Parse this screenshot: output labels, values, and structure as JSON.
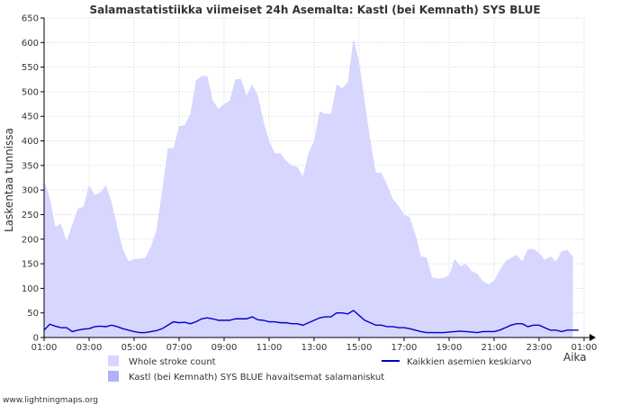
{
  "chart_data": {
    "type": "area",
    "title": "Salamastatistiikka viimeiset 24h Asemalta: Kastl (bei Kemnath) SYS BLUE",
    "xlabel": "Aika",
    "ylabel": "Laskentaa tunnissa",
    "ylim": [
      0,
      650
    ],
    "yticks": [
      0,
      50,
      100,
      150,
      200,
      250,
      300,
      350,
      400,
      450,
      500,
      550,
      600,
      650
    ],
    "xlim_hours": [
      0,
      24
    ],
    "xticks": [
      {
        "h": 0,
        "label": "01:00"
      },
      {
        "h": 2,
        "label": "03:00"
      },
      {
        "h": 4,
        "label": "05:00"
      },
      {
        "h": 6,
        "label": "07:00"
      },
      {
        "h": 8,
        "label": "09:00"
      },
      {
        "h": 10,
        "label": "11:00"
      },
      {
        "h": 12,
        "label": "13:00"
      },
      {
        "h": 14,
        "label": "15:00"
      },
      {
        "h": 16,
        "label": "17:00"
      },
      {
        "h": 18,
        "label": "19:00"
      },
      {
        "h": 20,
        "label": "21:00"
      },
      {
        "h": 22,
        "label": "23:00"
      },
      {
        "h": 24,
        "label": "01:00"
      }
    ],
    "grid": true,
    "x_hours": [
      0,
      0.25,
      0.5,
      0.75,
      1,
      1.25,
      1.5,
      1.75,
      2,
      2.25,
      2.5,
      2.75,
      3,
      3.25,
      3.5,
      3.75,
      4,
      4.25,
      4.5,
      4.75,
      5,
      5.25,
      5.5,
      5.75,
      6,
      6.25,
      6.5,
      6.75,
      7,
      7.25,
      7.5,
      7.75,
      8,
      8.25,
      8.5,
      8.75,
      9,
      9.25,
      9.5,
      9.75,
      10,
      10.25,
      10.5,
      10.75,
      11,
      11.25,
      11.5,
      11.75,
      12,
      12.25,
      12.5,
      12.75,
      13,
      13.25,
      13.5,
      13.75,
      14,
      14.25,
      14.5,
      14.75,
      15,
      15.25,
      15.5,
      15.75,
      16,
      16.25,
      16.5,
      16.75,
      17,
      17.25,
      17.5,
      17.75,
      18,
      18.25,
      18.5,
      18.75,
      19,
      19.25,
      19.5,
      19.75,
      20,
      20.25,
      20.5,
      20.75,
      21,
      21.25,
      21.5,
      21.75,
      22,
      22.25,
      22.5,
      22.75,
      23,
      23.25,
      23.5,
      23.75
    ],
    "series": [
      {
        "name": "Whole stroke count",
        "style": "area",
        "color": "#d6d6ff",
        "values": [
          320,
          285,
          225,
          232,
          195,
          230,
          262,
          266,
          310,
          290,
          295,
          310,
          275,
          225,
          180,
          155,
          160,
          160,
          162,
          185,
          220,
          300,
          385,
          385,
          430,
          432,
          455,
          523,
          532,
          532,
          482,
          465,
          475,
          482,
          525,
          526,
          492,
          515,
          492,
          440,
          400,
          375,
          375,
          360,
          350,
          347,
          328,
          375,
          400,
          460,
          455,
          455,
          515,
          507,
          520,
          608,
          560,
          480,
          400,
          335,
          335,
          310,
          282,
          268,
          250,
          245,
          210,
          165,
          163,
          122,
          120,
          121,
          126,
          160,
          145,
          150,
          135,
          130,
          115,
          108,
          115,
          137,
          155,
          162,
          168,
          155,
          180,
          180,
          172,
          158,
          165,
          155,
          175,
          178,
          165
        ]
      },
      {
        "name": "Kastl (bei Kemnath) SYS BLUE havaitsemat salamaniskut",
        "style": "area",
        "color": "#b0b0ff",
        "values": [
          0,
          0,
          0,
          0,
          0,
          0,
          0,
          0,
          0,
          0,
          0,
          0,
          0,
          0,
          0,
          0,
          0,
          0,
          0,
          0,
          0,
          0,
          0,
          0,
          0,
          0,
          0,
          0,
          0,
          0,
          0,
          0,
          0,
          0,
          0,
          0,
          0,
          0,
          0,
          0,
          0,
          0,
          0,
          0,
          0,
          0,
          0,
          0,
          0,
          0,
          0,
          0,
          0,
          0,
          0,
          0,
          0,
          0,
          0,
          0,
          0,
          0,
          0,
          0,
          0,
          0,
          0,
          0,
          0,
          0,
          0,
          0,
          0,
          0,
          0,
          0,
          0,
          0,
          0,
          0,
          0,
          0,
          0,
          0,
          0,
          0,
          0,
          0,
          0,
          0,
          0,
          0,
          0,
          0,
          0,
          0
        ]
      },
      {
        "name": "Kaikkien asemien keskiarvo",
        "style": "line",
        "color": "#0000cc",
        "values": [
          15,
          27,
          23,
          20,
          20,
          12,
          15,
          17,
          18,
          22,
          23,
          22,
          25,
          22,
          18,
          15,
          12,
          10,
          10,
          12,
          14,
          18,
          25,
          32,
          30,
          31,
          28,
          32,
          38,
          40,
          38,
          35,
          35,
          35,
          38,
          38,
          38,
          42,
          36,
          35,
          32,
          32,
          30,
          30,
          28,
          28,
          25,
          30,
          35,
          40,
          42,
          42,
          50,
          50,
          48,
          55,
          45,
          35,
          30,
          25,
          25,
          22,
          22,
          20,
          20,
          18,
          15,
          12,
          10,
          10,
          10,
          10,
          11,
          12,
          13,
          12,
          11,
          10,
          12,
          12,
          12,
          15,
          20,
          25,
          28,
          28,
          22,
          25,
          25,
          20,
          15,
          15,
          12,
          15,
          15,
          15
        ]
      }
    ],
    "legend": {
      "placement": "bottom",
      "items": [
        "Whole stroke count",
        "Kastl (bei Kemnath) SYS BLUE havaitsemat salamaniskut",
        "Kaikkien asemien keskiarvo"
      ]
    },
    "footer": "www.lightningmaps.org"
  }
}
